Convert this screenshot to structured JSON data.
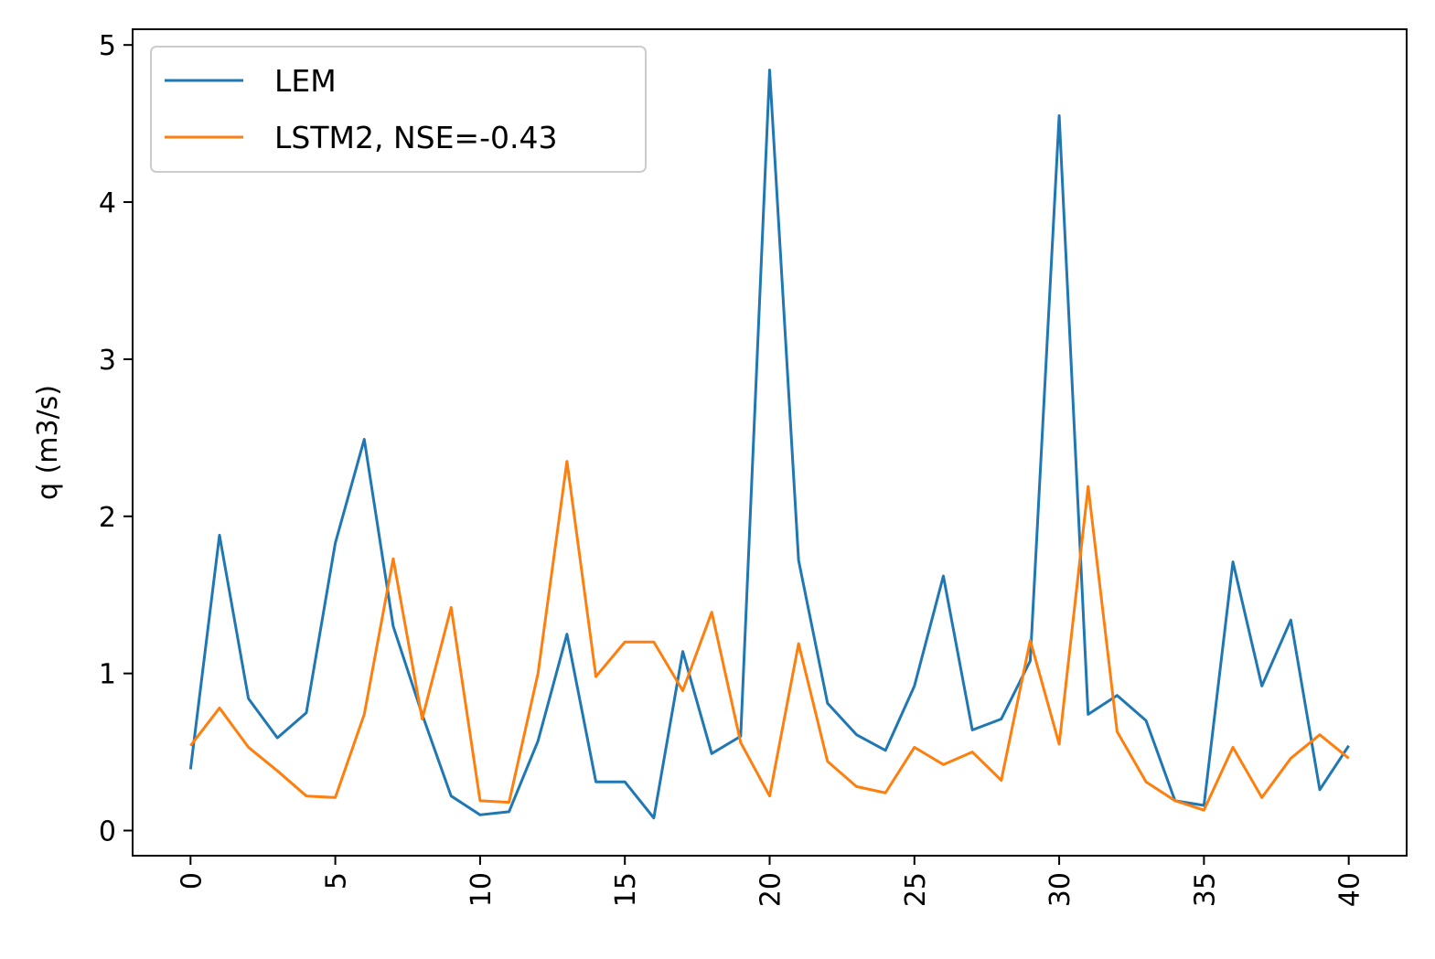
{
  "chart_data": {
    "type": "line",
    "xlabel": "",
    "ylabel": "q (m3/s)",
    "xlim": [
      -2,
      42
    ],
    "ylim": [
      -0.16,
      5.1
    ],
    "x_ticks": [
      0,
      5,
      10,
      15,
      20,
      25,
      30,
      35,
      40
    ],
    "y_ticks": [
      0,
      1,
      2,
      3,
      4,
      5
    ],
    "grid": false,
    "legend_position": "top-left",
    "x": [
      0,
      1,
      2,
      3,
      4,
      5,
      6,
      7,
      8,
      9,
      10,
      11,
      12,
      13,
      14,
      15,
      16,
      17,
      18,
      19,
      20,
      21,
      22,
      23,
      24,
      25,
      26,
      27,
      28,
      29,
      30,
      31,
      32,
      33,
      34,
      35,
      36,
      37,
      38,
      39,
      40
    ],
    "series": [
      {
        "name": "LEM",
        "color": "#1f77b4",
        "values": [
          0.39,
          1.88,
          0.84,
          0.59,
          0.75,
          1.83,
          2.49,
          1.3,
          0.74,
          0.22,
          0.1,
          0.12,
          0.57,
          1.25,
          0.31,
          0.31,
          0.08,
          1.14,
          0.49,
          0.6,
          4.84,
          1.72,
          0.81,
          0.61,
          0.51,
          0.92,
          1.62,
          0.64,
          0.71,
          1.08,
          4.55,
          0.74,
          0.86,
          0.7,
          0.19,
          0.16,
          1.71,
          0.92,
          1.34,
          0.26,
          0.54
        ]
      },
      {
        "name": "LSTM2, NSE=-0.43",
        "color": "#ff7f0e",
        "values": [
          0.54,
          0.78,
          0.53,
          0.38,
          0.22,
          0.21,
          0.74,
          1.73,
          0.71,
          1.42,
          0.19,
          0.18,
          1.0,
          2.35,
          0.98,
          1.2,
          1.2,
          0.89,
          1.39,
          0.56,
          0.22,
          1.19,
          0.44,
          0.28,
          0.24,
          0.53,
          0.42,
          0.5,
          0.32,
          1.21,
          0.55,
          2.19,
          0.63,
          0.31,
          0.19,
          0.13,
          0.53,
          0.21,
          0.46,
          0.61,
          0.46
        ]
      }
    ]
  }
}
